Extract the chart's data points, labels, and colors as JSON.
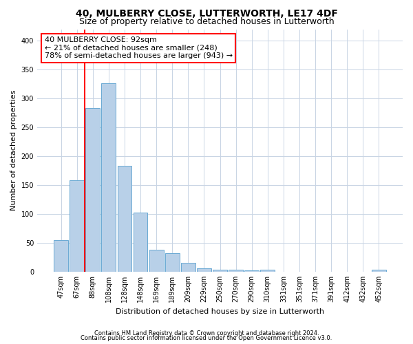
{
  "title": "40, MULBERRY CLOSE, LUTTERWORTH, LE17 4DF",
  "subtitle": "Size of property relative to detached houses in Lutterworth",
  "xlabel": "Distribution of detached houses by size in Lutterworth",
  "ylabel": "Number of detached properties",
  "categories": [
    "47sqm",
    "67sqm",
    "88sqm",
    "108sqm",
    "128sqm",
    "148sqm",
    "169sqm",
    "189sqm",
    "209sqm",
    "229sqm",
    "250sqm",
    "270sqm",
    "290sqm",
    "310sqm",
    "331sqm",
    "351sqm",
    "371sqm",
    "391sqm",
    "412sqm",
    "432sqm",
    "452sqm"
  ],
  "values": [
    55,
    158,
    283,
    327,
    184,
    103,
    38,
    32,
    15,
    6,
    4,
    4,
    2,
    4,
    0,
    0,
    0,
    0,
    0,
    0,
    3
  ],
  "bar_color": "#b8d0e8",
  "bar_edge_color": "#6aaad4",
  "redline_index": 2,
  "annotation_line1": "40 MULBERRY CLOSE: 92sqm",
  "annotation_line2": "← 21% of detached houses are smaller (248)",
  "annotation_line3": "78% of semi-detached houses are larger (943) →",
  "annotation_box_color": "white",
  "annotation_box_edge_color": "red",
  "redline_color": "red",
  "footer1": "Contains HM Land Registry data © Crown copyright and database right 2024.",
  "footer2": "Contains public sector information licensed under the Open Government Licence v3.0.",
  "ylim": [
    0,
    420
  ],
  "yticks": [
    0,
    50,
    100,
    150,
    200,
    250,
    300,
    350,
    400
  ],
  "grid_color": "#c8d4e4",
  "background_color": "white",
  "title_fontsize": 10,
  "subtitle_fontsize": 9,
  "ylabel_fontsize": 8,
  "xlabel_fontsize": 8,
  "tick_fontsize": 7,
  "footer_fontsize": 6,
  "annot_fontsize": 8
}
